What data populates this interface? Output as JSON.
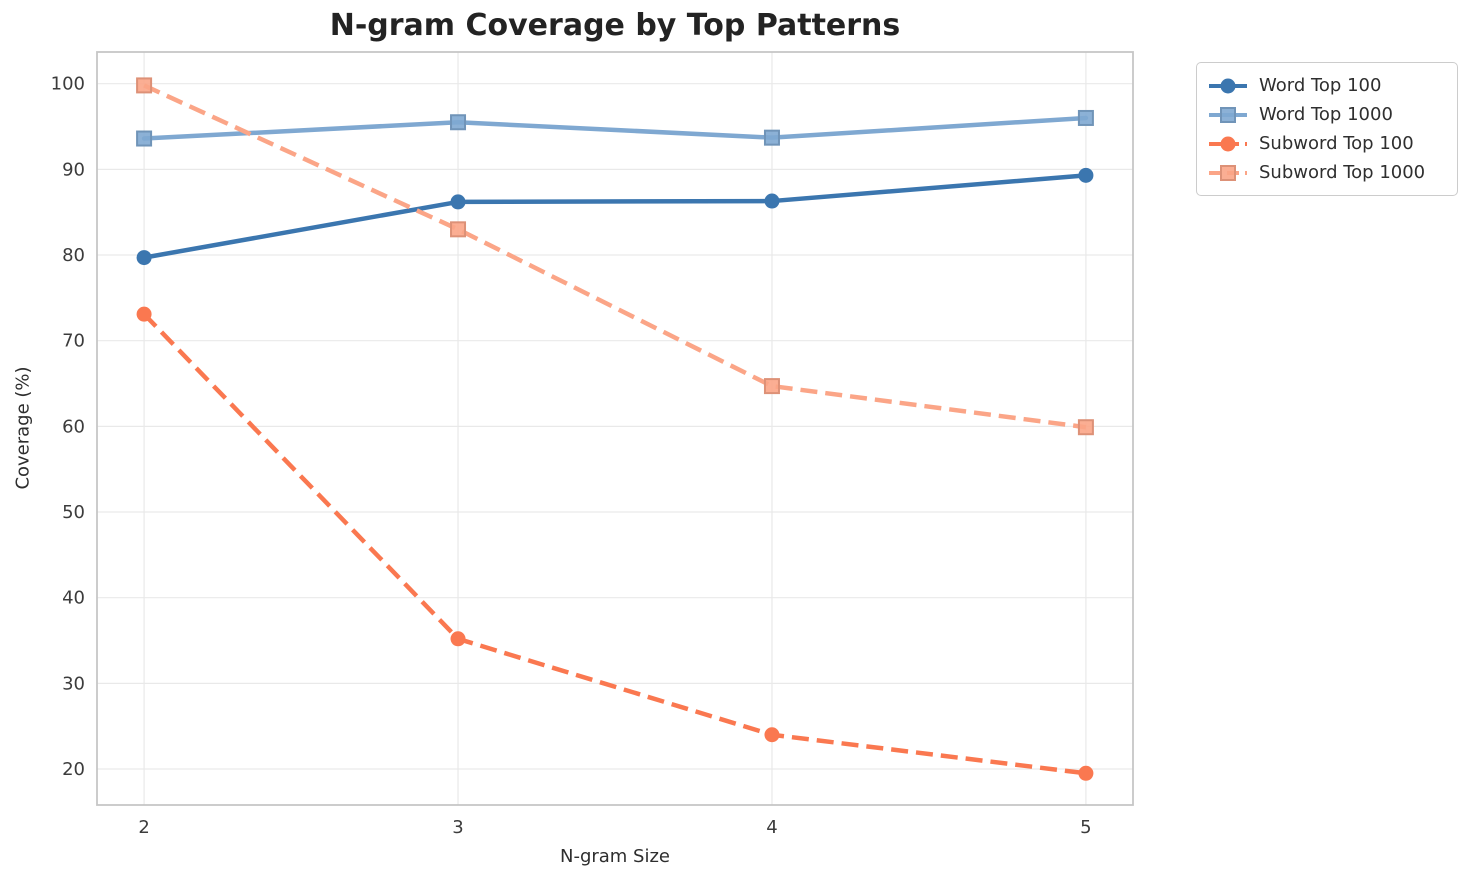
{
  "title": "N-gram Coverage by Top Patterns",
  "chart_data": {
    "type": "line",
    "x": [
      2,
      3,
      4,
      5
    ],
    "xlabel": "N-gram Size",
    "ylabel": "Coverage (%)",
    "xticks": [
      2,
      3,
      4,
      5
    ],
    "yticks": [
      20,
      30,
      40,
      50,
      60,
      70,
      80,
      90,
      100
    ],
    "xlim": [
      1.85,
      5.15
    ],
    "ylim": [
      15.8,
      103.7
    ],
    "grid": true,
    "legend_position": "outside-upper-right",
    "series": [
      {
        "name": "Word Top 100",
        "color": "#3b76af",
        "linestyle": "solid",
        "marker": "circle",
        "values": [
          79.7,
          86.2,
          86.3,
          89.3
        ]
      },
      {
        "name": "Word Top 1000",
        "color": "#7fa8d1",
        "linestyle": "solid",
        "marker": "square",
        "values": [
          93.6,
          95.5,
          93.7,
          96.0
        ]
      },
      {
        "name": "Subword Top 100",
        "color": "#fa7850",
        "linestyle": "dashed",
        "marker": "circle",
        "values": [
          73.1,
          35.2,
          24.0,
          19.5
        ]
      },
      {
        "name": "Subword Top 1000",
        "color": "#fba587",
        "linestyle": "dashed",
        "marker": "square",
        "values": [
          99.8,
          83.0,
          64.7,
          59.9
        ]
      }
    ]
  }
}
